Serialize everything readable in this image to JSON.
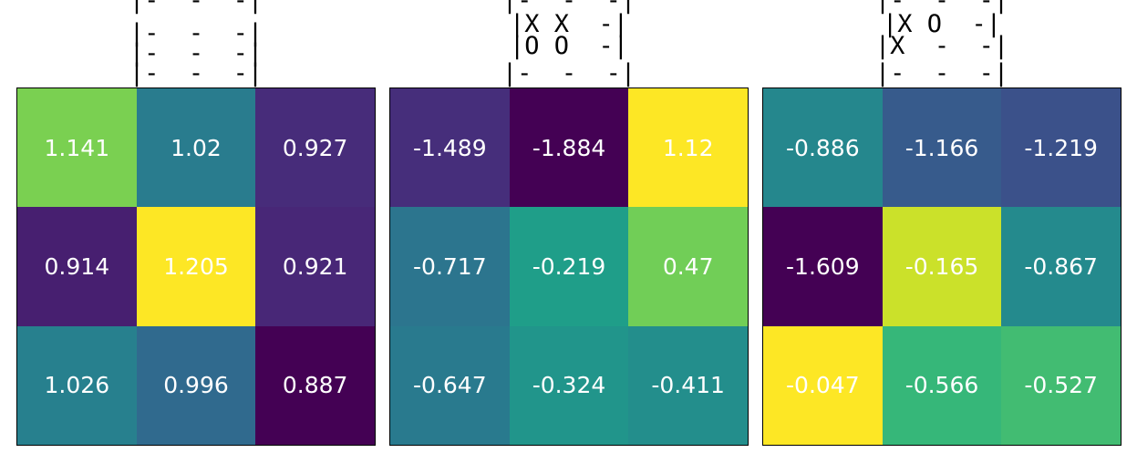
{
  "chart_data": [
    {
      "type": "heatmap",
      "board": [
        "|-  -  -|",
        "|-  -  -|",
        "|-  -  -|",
        "|-  -  -|"
      ],
      "values": [
        [
          1.141,
          1.02,
          0.927
        ],
        [
          0.914,
          1.205,
          0.921
        ],
        [
          1.026,
          0.996,
          0.887
        ]
      ],
      "labels": [
        "1.141",
        "1.02",
        "0.927",
        "0.914",
        "1.205",
        "0.921",
        "1.026",
        "0.996",
        "0.887"
      ],
      "colormap": "viridis"
    },
    {
      "type": "heatmap",
      "board": [
        "|-  -  -|",
        "|X X  -|",
        "|O O  -|",
        "|-  -  -|"
      ],
      "values": [
        [
          -1.489,
          -1.884,
          1.12
        ],
        [
          -0.717,
          -0.219,
          0.47
        ],
        [
          -0.647,
          -0.324,
          -0.411
        ]
      ],
      "labels": [
        "-1.489",
        "-1.884",
        "1.12",
        "-0.717",
        "-0.219",
        "0.47",
        "-0.647",
        "-0.324",
        "-0.411"
      ],
      "colormap": "viridis"
    },
    {
      "type": "heatmap",
      "board": [
        "|-  -  -|",
        "|X O  -|",
        "|X  -  -|",
        "|-  -  -|"
      ],
      "values": [
        [
          -0.886,
          -1.166,
          -1.219
        ],
        [
          -1.609,
          -0.165,
          -0.867
        ],
        [
          -0.047,
          -0.566,
          -0.527
        ]
      ],
      "labels": [
        "-0.886",
        "-1.166",
        "-1.219",
        "-1.609",
        "-0.165",
        "-0.867",
        "-0.047",
        "-0.566",
        "-0.527"
      ],
      "colormap": "viridis"
    }
  ]
}
